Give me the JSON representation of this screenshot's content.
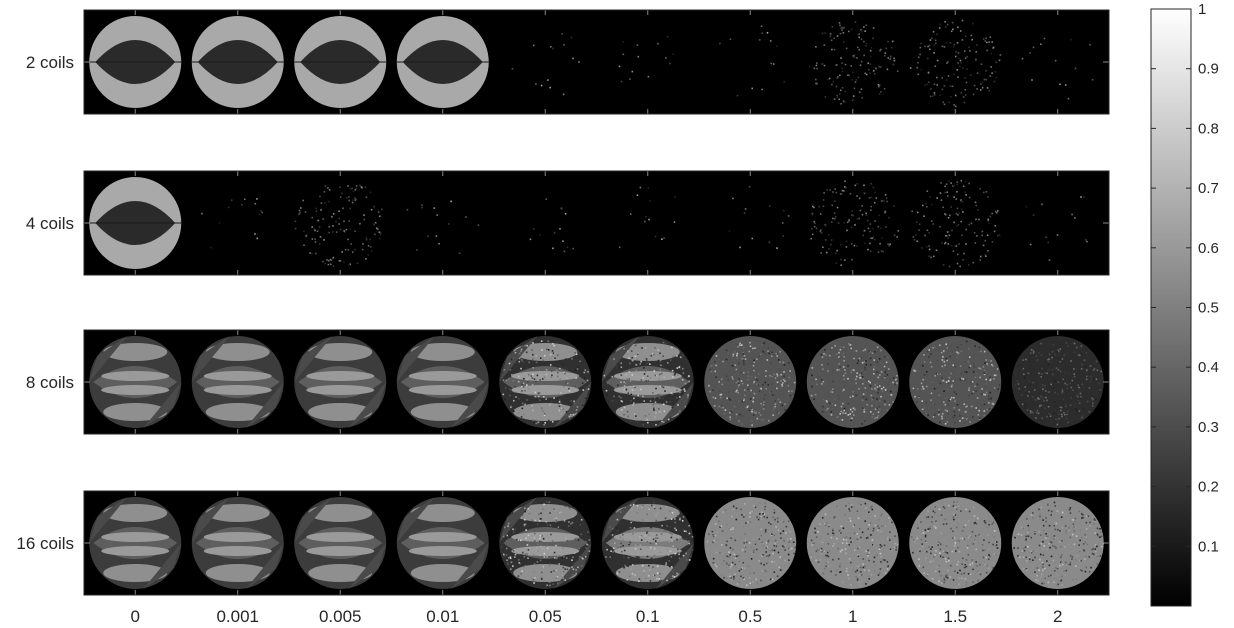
{
  "figure": {
    "rows": [
      {
        "label": "2 coils",
        "tiles": [
          "A",
          "A",
          "A",
          "A",
          "N1",
          "N1",
          "N1",
          "N2",
          "N2",
          "N1"
        ]
      },
      {
        "label": "4 coils",
        "tiles": [
          "A",
          "N1",
          "N2",
          "N1",
          "N1",
          "N1",
          "N1",
          "N2",
          "N2",
          "N1"
        ]
      },
      {
        "label": "8 coils",
        "tiles": [
          "B",
          "B",
          "B",
          "B",
          "C",
          "C",
          "D",
          "D",
          "D",
          "E"
        ]
      },
      {
        "label": "16 coils",
        "tiles": [
          "B",
          "B",
          "B",
          "B",
          "C",
          "F",
          "G",
          "G",
          "G",
          "G"
        ]
      }
    ],
    "column_labels": [
      "0",
      "0.001",
      "0.005",
      "0.01",
      "0.05",
      "0.1",
      "0.5",
      "1",
      "1.5",
      "2"
    ]
  },
  "colorbar": {
    "colormap": "gray",
    "min": 0,
    "max": 1,
    "ticks": [
      "0.1",
      "0.2",
      "0.3",
      "0.4",
      "0.5",
      "0.6",
      "0.7",
      "0.8",
      "0.9",
      "1"
    ]
  },
  "colors": {
    "background": "#000000",
    "frame": "#262626"
  }
}
